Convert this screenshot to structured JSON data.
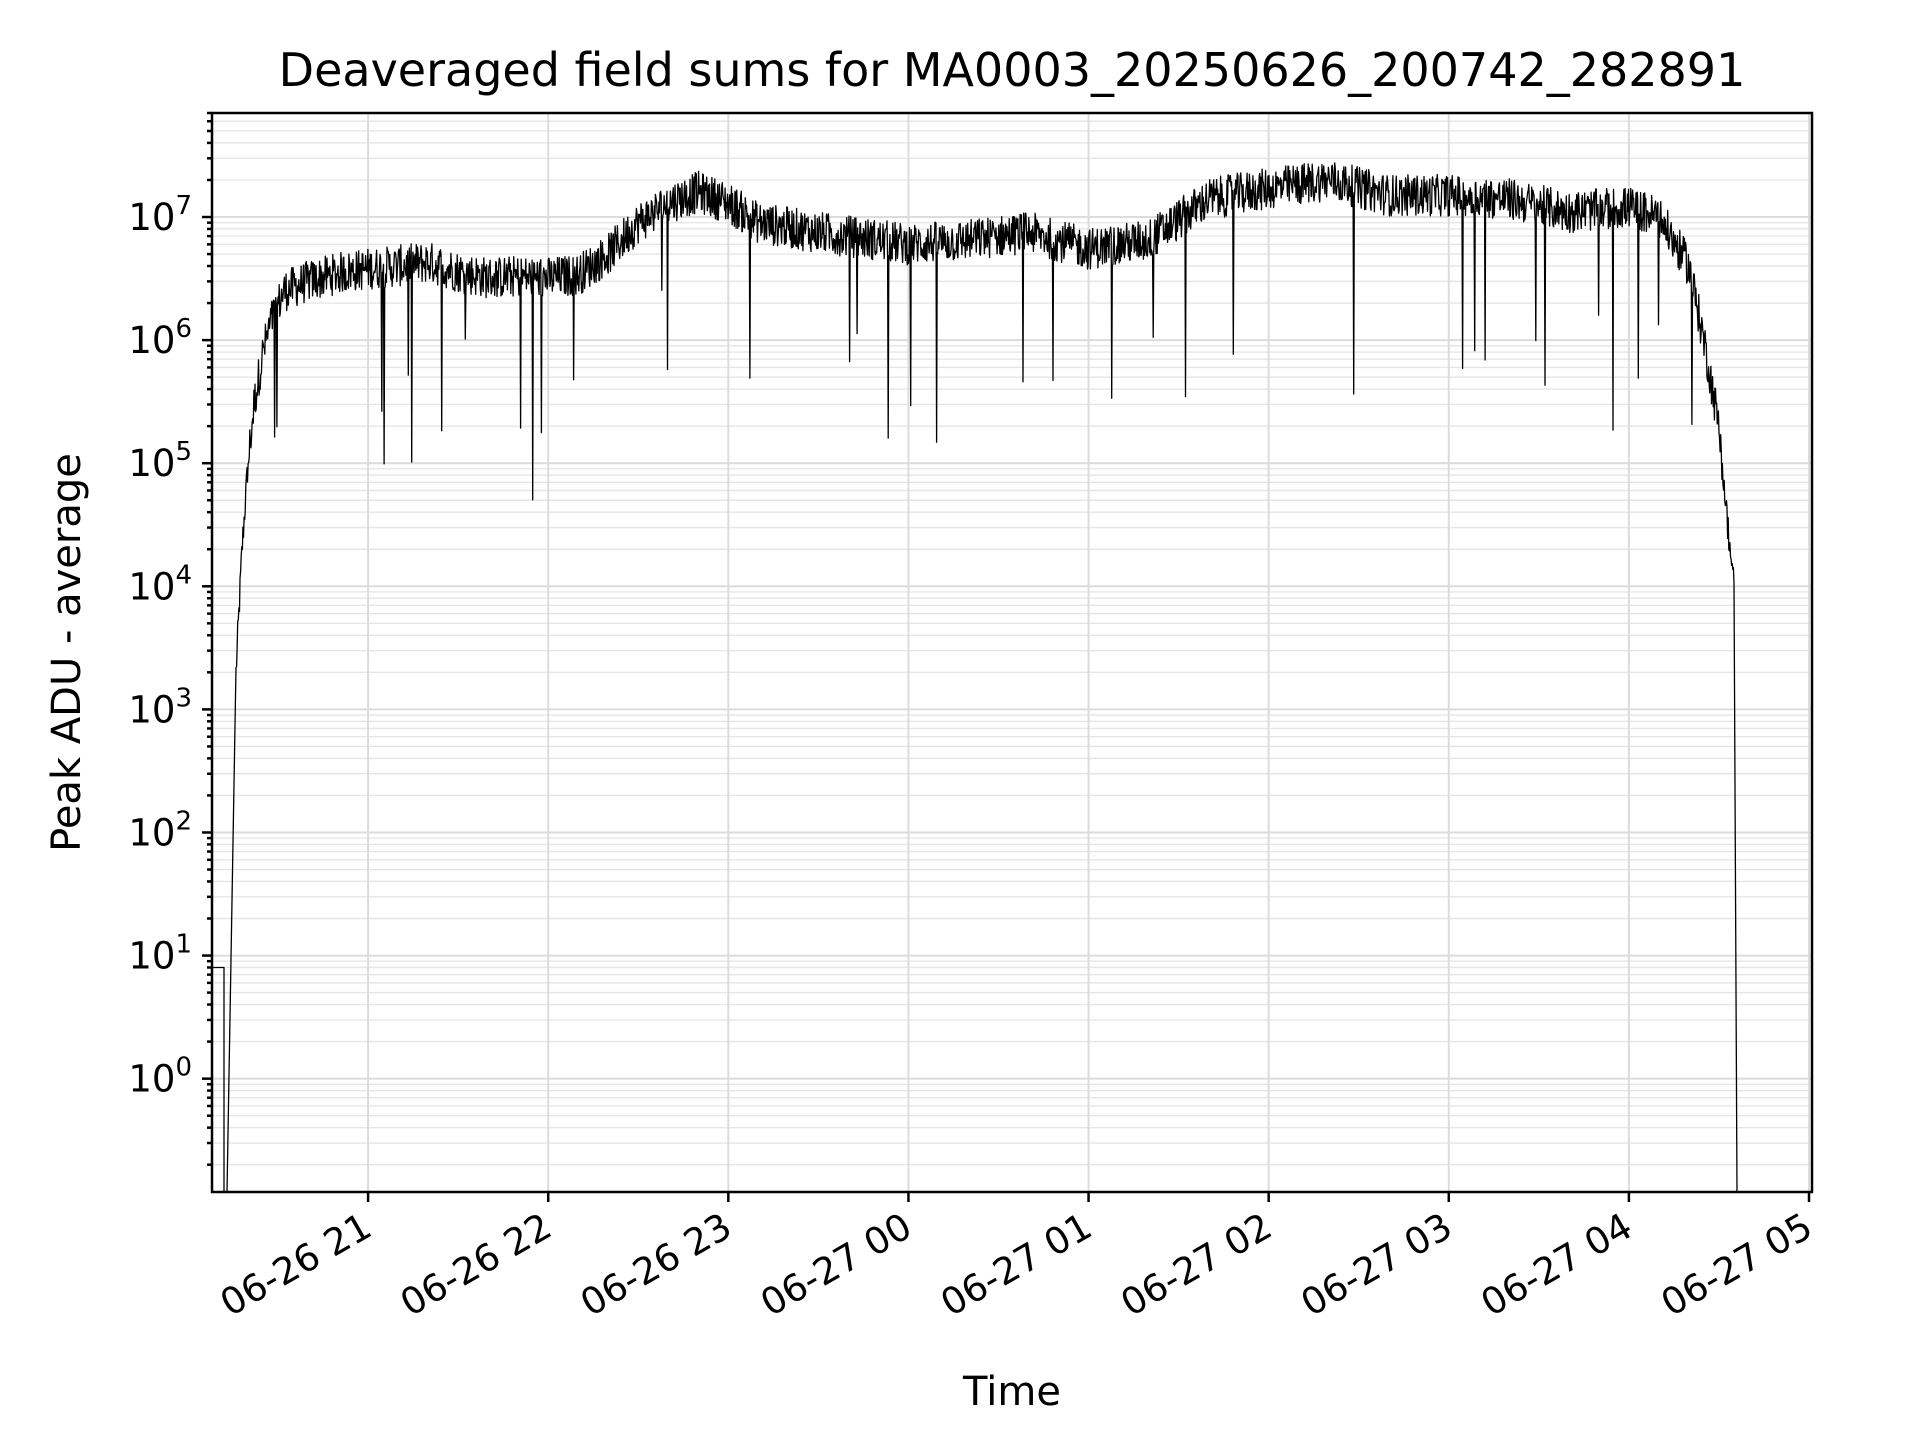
{
  "chart_data": {
    "type": "line",
    "title": "Deaveraged field sums for MA0003_20250626_200742_282891",
    "xlabel": "Time",
    "ylabel": "Peak ADU - average",
    "yscale": "log",
    "grid": true,
    "xlim": [
      "2025-06-26 20:08",
      "2025-06-27 05:01"
    ],
    "ylim": [
      0.12,
      70000000
    ],
    "x_ticks": [
      {
        "t": "2025-06-26 21:00",
        "label": "06-26 21"
      },
      {
        "t": "2025-06-26 22:00",
        "label": "06-26 22"
      },
      {
        "t": "2025-06-26 23:00",
        "label": "06-26 23"
      },
      {
        "t": "2025-06-27 00:00",
        "label": "06-27 00"
      },
      {
        "t": "2025-06-27 01:00",
        "label": "06-27 01"
      },
      {
        "t": "2025-06-27 02:00",
        "label": "06-27 02"
      },
      {
        "t": "2025-06-27 03:00",
        "label": "06-27 03"
      },
      {
        "t": "2025-06-27 04:00",
        "label": "06-27 04"
      },
      {
        "t": "2025-06-27 05:00",
        "label": "06-27 05"
      }
    ],
    "y_ticks": [
      {
        "value": 1,
        "base": "10",
        "exp": "0"
      },
      {
        "value": 10,
        "base": "10",
        "exp": "1"
      },
      {
        "value": 100,
        "base": "10",
        "exp": "2"
      },
      {
        "value": 1000,
        "base": "10",
        "exp": "3"
      },
      {
        "value": 10000,
        "base": "10",
        "exp": "4"
      },
      {
        "value": 100000,
        "base": "10",
        "exp": "5"
      },
      {
        "value": 1000000,
        "base": "10",
        "exp": "6"
      },
      {
        "value": 10000000,
        "base": "10",
        "exp": "7"
      }
    ],
    "series": [
      {
        "color": "#000000",
        "points": [
          [
            "2025-06-26 20:08",
            8
          ],
          [
            "2025-06-26 20:12",
            8
          ],
          [
            "2025-06-26 20:16",
            2000.0
          ],
          [
            "2025-06-26 20:18",
            20000.0
          ],
          [
            "2025-06-26 20:20",
            100000.0
          ],
          [
            "2025-06-26 20:22",
            300000.0
          ],
          [
            "2025-06-26 20:25",
            800000.0
          ],
          [
            "2025-06-26 20:28",
            1500000.0
          ],
          [
            "2025-06-26 20:32",
            2500000.0
          ],
          [
            "2025-06-26 20:40",
            3000000.0
          ],
          [
            "2025-06-26 20:50",
            3500000.0
          ],
          [
            "2025-06-26 21:00",
            3800000.0
          ],
          [
            "2025-06-26 21:10",
            4000000.0
          ],
          [
            "2025-06-26 21:20",
            4300000.0
          ],
          [
            "2025-06-26 21:30",
            3600000.0
          ],
          [
            "2025-06-26 21:40",
            3200000.0
          ],
          [
            "2025-06-26 21:50",
            3300000.0
          ],
          [
            "2025-06-26 22:00",
            3200000.0
          ],
          [
            "2025-06-26 22:10",
            3400000.0
          ],
          [
            "2025-06-26 22:20",
            5000000.0
          ],
          [
            "2025-06-26 22:30",
            9000000.0
          ],
          [
            "2025-06-26 22:40",
            13000000.0
          ],
          [
            "2025-06-26 22:50",
            16000000.0
          ],
          [
            "2025-06-26 23:00",
            13000000.0
          ],
          [
            "2025-06-26 23:10",
            9000000.0
          ],
          [
            "2025-06-26 23:30",
            7500000.0
          ],
          [
            "2025-06-26 23:50",
            6500000.0
          ],
          [
            "2025-06-27 00:00",
            6000000.0
          ],
          [
            "2025-06-27 00:20",
            6500000.0
          ],
          [
            "2025-06-27 00:40",
            7500000.0
          ],
          [
            "2025-06-27 01:00",
            5500000.0
          ],
          [
            "2025-06-27 01:20",
            6500000.0
          ],
          [
            "2025-06-27 01:40",
            14000000.0
          ],
          [
            "2025-06-27 02:00",
            17000000.0
          ],
          [
            "2025-06-27 02:20",
            20000000.0
          ],
          [
            "2025-06-27 02:40",
            15000000.0
          ],
          [
            "2025-06-27 03:00",
            15000000.0
          ],
          [
            "2025-06-27 03:20",
            14000000.0
          ],
          [
            "2025-06-27 03:40",
            11000000.0
          ],
          [
            "2025-06-27 04:00",
            12000000.0
          ],
          [
            "2025-06-27 04:10",
            10000000.0
          ],
          [
            "2025-06-27 04:20",
            4000000.0
          ],
          [
            "2025-06-27 04:25",
            1000000.0
          ],
          [
            "2025-06-27 04:30",
            200000.0
          ],
          [
            "2025-06-27 04:33",
            30000.0
          ],
          [
            "2025-06-27 04:35",
            10000.0
          ],
          [
            "2025-06-27 04:36",
            0.12
          ]
        ]
      }
    ]
  }
}
